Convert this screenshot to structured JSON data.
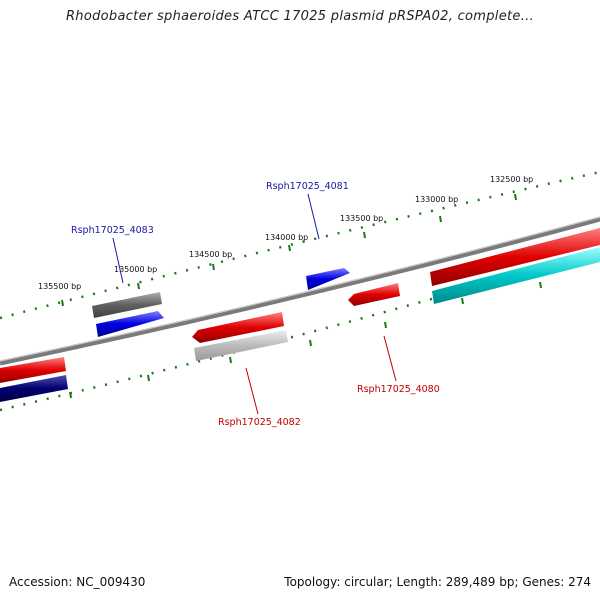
{
  "title": "Rhodobacter sphaeroides ATCC 17025 plasmid pRSPA02, complete...",
  "footer": {
    "accession": "Accession: NC_009430",
    "summary": "Topology: circular; Length: 289,489 bp; Genes: 274"
  },
  "colors": {
    "backbone": "#888888",
    "ticks": "#1a7a1a",
    "forward_gene": "#e00000",
    "reverse_gene": "#0000e0",
    "gray_gene": "#707070",
    "light_gray_gene": "#bdbdbd",
    "cyan_gene": "#00c8c8",
    "navy_gene": "#000070",
    "label_blue": "#1a1aa0",
    "label_red": "#c00000"
  },
  "ticks": [
    {
      "label": "135500 bp"
    },
    {
      "label": "135000 bp"
    },
    {
      "label": "134500 bp"
    },
    {
      "label": "134000 bp"
    },
    {
      "label": "133500 bp"
    },
    {
      "label": "133000 bp"
    },
    {
      "label": "132500 bp"
    }
  ],
  "genes": [
    {
      "name": "Rsph17025_4083",
      "color": "label_blue"
    },
    {
      "name": "Rsph17025_4081",
      "color": "label_blue"
    },
    {
      "name": "Rsph17025_4082",
      "color": "label_red"
    },
    {
      "name": "Rsph17025_4080",
      "color": "label_red"
    }
  ]
}
